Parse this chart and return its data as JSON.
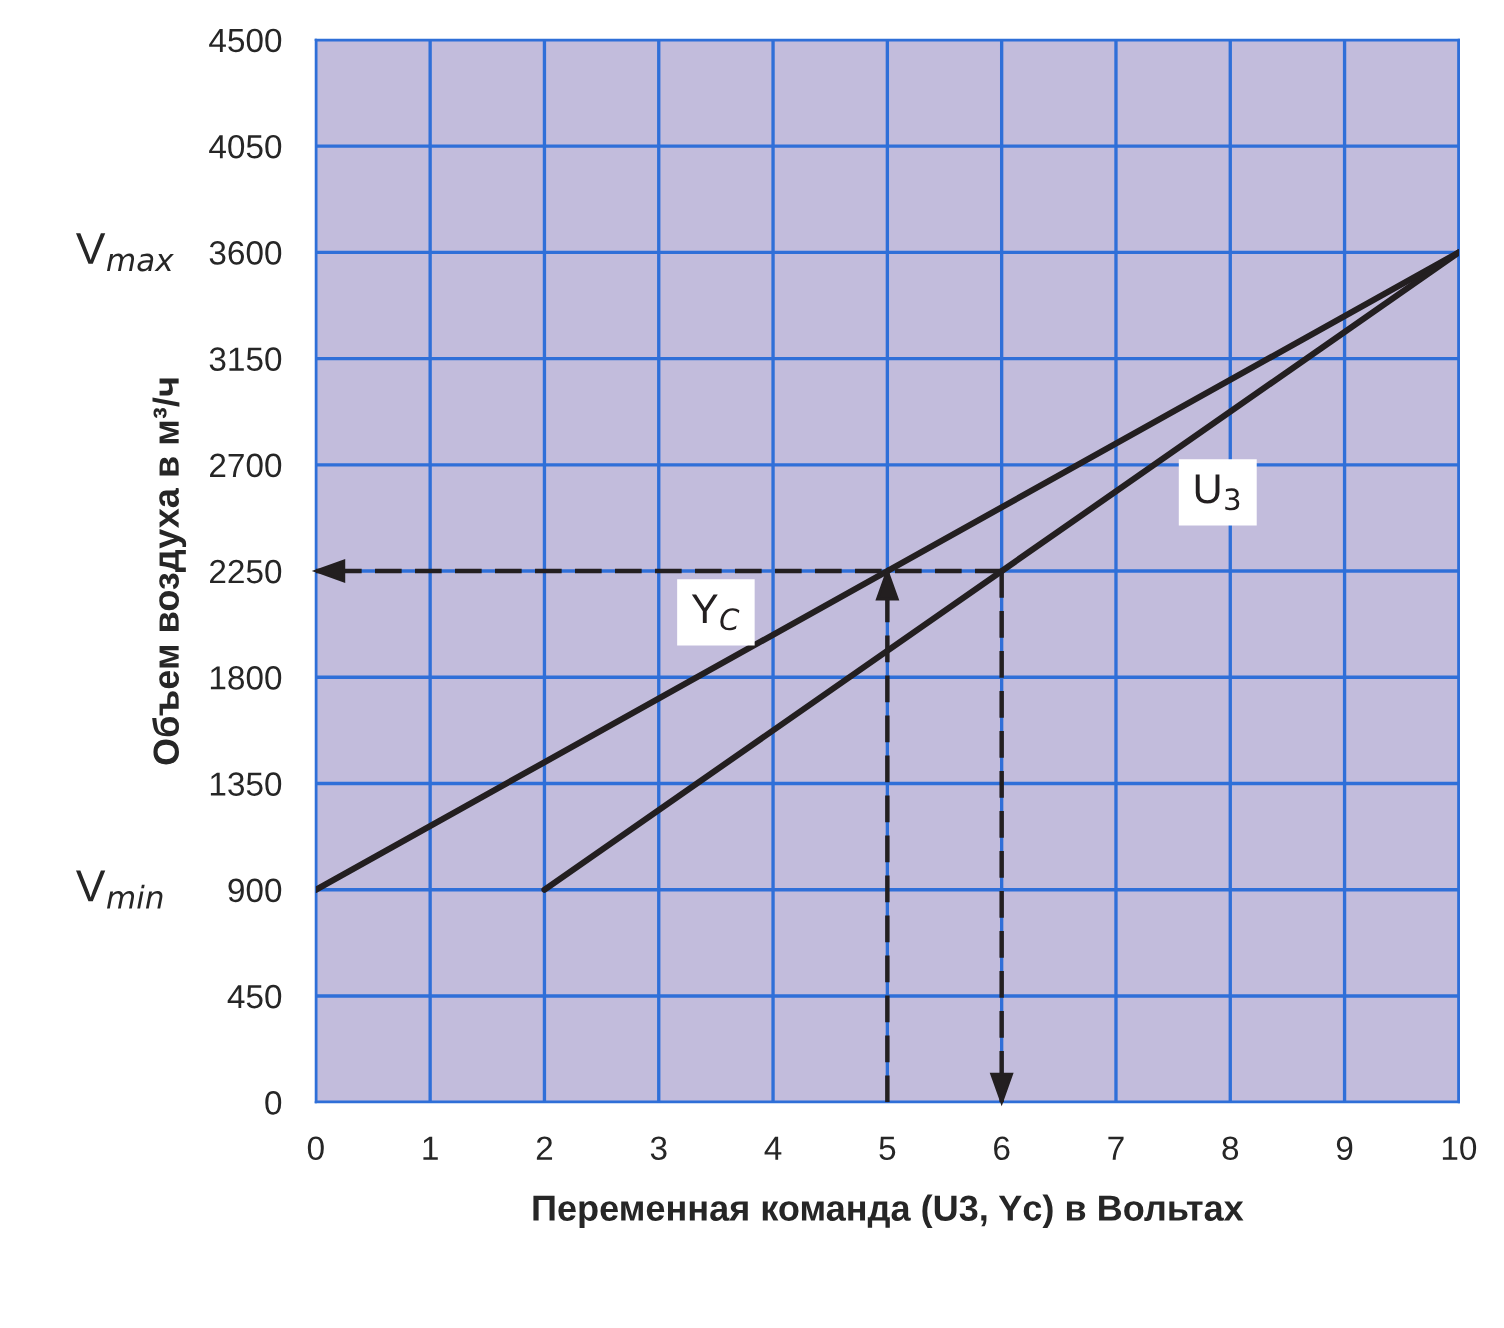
{
  "chart_data": {
    "type": "line",
    "xlabel": "Переменная команда (U3, Yc) в Вольтах",
    "ylabel": "Объем воздуха в м³/ч",
    "xlim": [
      0,
      10
    ],
    "ylim": [
      0,
      4500
    ],
    "xticks": [
      0,
      1,
      2,
      3,
      4,
      5,
      6,
      7,
      8,
      9,
      10
    ],
    "yticks": [
      0,
      450,
      900,
      1350,
      1800,
      2250,
      2700,
      3150,
      3600,
      4050,
      4500
    ],
    "grid": true,
    "marker": "none",
    "series": [
      {
        "name": "Y$_{C}$",
        "color": "#231f20",
        "x": [
          0,
          10
        ],
        "values": [
          900,
          3600
        ],
        "line_style": "solid"
      },
      {
        "name": "U$_{3}$",
        "color": "#231f20",
        "x": [
          2,
          10
        ],
        "values": [
          900,
          3600
        ],
        "line_style": "solid"
      },
      {
        "color": "#231f20",
        "x": [
          6,
          0
        ],
        "values": [
          2250,
          2250
        ],
        "line_style": "dashed"
      },
      {
        "color": "#231f20",
        "x": [
          5,
          5
        ],
        "values": [
          0,
          2250
        ],
        "line_style": "dashed"
      },
      {
        "color": "#231f20",
        "x": [
          6,
          6
        ],
        "values": [
          2250,
          0
        ],
        "line_style": "dashed"
      }
    ],
    "annotations": [
      "V$_{max}$",
      "V$_{min}$"
    ]
  }
}
